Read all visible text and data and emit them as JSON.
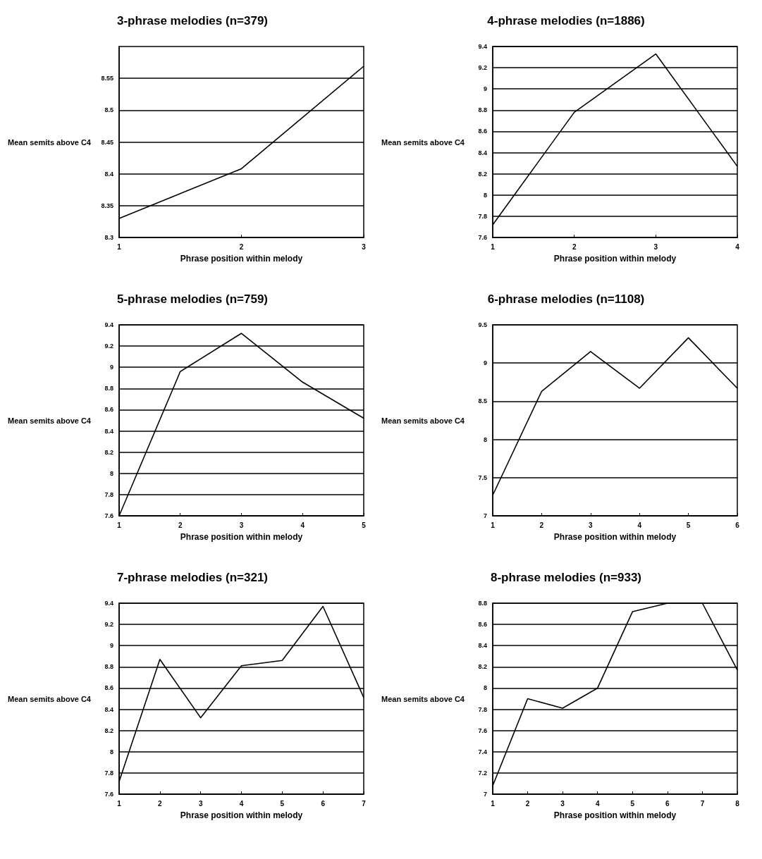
{
  "chart_data": [
    {
      "type": "line",
      "title": "3-phrase melodies (n=379)",
      "xlabel": "Phrase position within melody",
      "ylabel": "Mean semits above C4",
      "categories": [
        "1",
        "2",
        "3"
      ],
      "series": [
        {
          "color": "#000000",
          "values": [
            8.33,
            8.408,
            8.569
          ]
        }
      ],
      "ylim": [
        8.3,
        8.6
      ],
      "yticks": [
        8.3,
        8.35,
        8.4,
        8.45,
        8.5,
        8.55
      ],
      "grid": "y",
      "marker": "none",
      "line_style": "solid"
    },
    {
      "type": "line",
      "title": "4-phrase melodies (n=1886)",
      "xlabel": "Phrase position within melody",
      "ylabel": "Mean semits above C4",
      "categories": [
        "1",
        "2",
        "3",
        "4"
      ],
      "series": [
        {
          "color": "#000000",
          "values": [
            7.72,
            8.78,
            9.33,
            8.27
          ]
        }
      ],
      "ylim": [
        7.6,
        9.4
      ],
      "yticks": [
        7.6,
        7.8,
        8,
        8.2,
        8.4,
        8.6,
        8.8,
        9,
        9.2,
        9.4
      ],
      "grid": "y",
      "marker": "none",
      "line_style": "solid"
    },
    {
      "type": "line",
      "title": "5-phrase melodies (n=759)",
      "xlabel": "Phrase position within melody",
      "ylabel": "Mean semits above C4",
      "categories": [
        "1",
        "2",
        "3",
        "4",
        "5"
      ],
      "series": [
        {
          "color": "#000000",
          "values": [
            7.6,
            8.96,
            9.32,
            8.86,
            8.52
          ]
        }
      ],
      "ylim": [
        7.6,
        9.4
      ],
      "yticks": [
        7.6,
        7.8,
        8,
        8.2,
        8.4,
        8.6,
        8.8,
        9,
        9.2,
        9.4
      ],
      "grid": "y",
      "marker": "none",
      "line_style": "solid"
    },
    {
      "type": "line",
      "title": "6-phrase melodies (n=1108)",
      "xlabel": "Phrase position within melody",
      "ylabel": "Mean semits above C4",
      "categories": [
        "1",
        "2",
        "3",
        "4",
        "5",
        "6"
      ],
      "series": [
        {
          "color": "#000000",
          "values": [
            7.27,
            8.63,
            9.15,
            8.67,
            9.33,
            8.67
          ]
        }
      ],
      "ylim": [
        7,
        9.5
      ],
      "yticks": [
        7,
        7.5,
        8,
        8.5,
        9,
        9.5
      ],
      "grid": "y",
      "marker": "none",
      "line_style": "solid"
    },
    {
      "type": "line",
      "title": "7-phrase melodies (n=321)",
      "xlabel": "Phrase position within melody",
      "ylabel": "Mean semits above C4",
      "categories": [
        "1",
        "2",
        "3",
        "4",
        "5",
        "6",
        "7"
      ],
      "series": [
        {
          "color": "#000000",
          "values": [
            7.72,
            8.87,
            8.32,
            8.81,
            8.86,
            9.37,
            8.51
          ]
        }
      ],
      "ylim": [
        7.6,
        9.4
      ],
      "yticks": [
        7.6,
        7.8,
        8,
        8.2,
        8.4,
        8.6,
        8.8,
        9,
        9.2,
        9.4
      ],
      "grid": "y",
      "marker": "none",
      "line_style": "solid"
    },
    {
      "type": "line",
      "title": "8-phrase melodies (n=933)",
      "xlabel": "Phrase position within melody",
      "ylabel": "Mean semits above C4",
      "categories": [
        "1",
        "2",
        "3",
        "4",
        "5",
        "6",
        "7",
        "8"
      ],
      "series": [
        {
          "color": "#000000",
          "values": [
            7.08,
            7.9,
            7.81,
            8.0,
            8.72,
            8.8,
            8.8,
            8.17
          ]
        }
      ],
      "ylim": [
        7,
        8.8
      ],
      "yticks": [
        7,
        7.2,
        7.4,
        7.6,
        7.8,
        8,
        8.2,
        8.4,
        8.6,
        8.8
      ],
      "grid": "y",
      "marker": "none",
      "line_style": "solid"
    }
  ]
}
